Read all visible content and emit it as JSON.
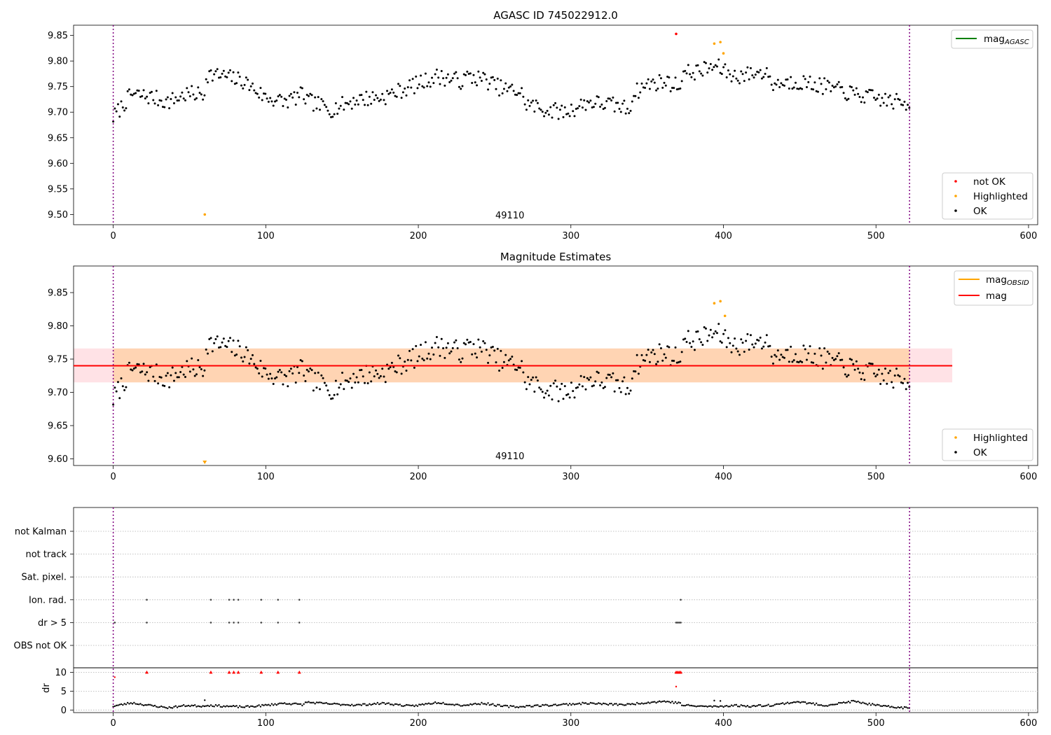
{
  "chart_data": [
    {
      "type": "scatter",
      "title": "AGASC ID 745022912.0",
      "xlim": [
        -26,
        606
      ],
      "ylim": [
        9.48,
        9.87
      ],
      "xticks": [
        0,
        100,
        200,
        300,
        400,
        500,
        600
      ],
      "yticks": [
        9.5,
        9.55,
        9.6,
        9.65,
        9.7,
        9.75,
        9.8,
        9.85
      ],
      "grid": false,
      "obsid_label": "49110",
      "obsid_label_x": 260,
      "vlines_x": [
        0,
        522
      ],
      "legend_lines": [
        {
          "name": "mag",
          "sub": "AGASC",
          "color": "#008000"
        }
      ],
      "legend_lines_position": "top-right",
      "legend_points": [
        {
          "name": "not OK",
          "color": "#ff0000"
        },
        {
          "name": "Highlighted",
          "color": "#ffa500"
        },
        {
          "name": "OK",
          "color": "#000000"
        }
      ],
      "legend_points_position": "bottom-right",
      "series_ok_segments": [
        {
          "x": [
            0,
            60
          ],
          "start": 9.69,
          "levels": [
            9.735,
            9.73,
            9.72,
            9.735,
            9.735
          ]
        },
        {
          "x": [
            60,
            125
          ],
          "start": 9.775,
          "levels": [
            9.77,
            9.76,
            9.73,
            9.72,
            9.735
          ]
        },
        {
          "x": [
            125,
            230
          ],
          "start": 9.725,
          "levels": [
            9.705,
            9.725,
            9.73,
            9.75,
            9.77,
            9.76
          ]
        },
        {
          "x": [
            230,
            268
          ],
          "start": 9.77,
          "levels": [
            9.765,
            9.745,
            9.74
          ]
        },
        {
          "x": [
            268,
            340
          ],
          "start": 9.72,
          "levels": [
            9.705,
            9.7,
            9.72,
            9.715,
            9.705
          ]
        },
        {
          "x": [
            340,
            372
          ],
          "start": 9.735,
          "levels": [
            9.755,
            9.76,
            9.75
          ]
        },
        {
          "x": [
            372,
            430
          ],
          "start": 9.775,
          "levels": [
            9.78,
            9.79,
            9.77,
            9.775,
            9.78
          ]
        },
        {
          "x": [
            430,
            522
          ],
          "start": 9.755,
          "levels": [
            9.76,
            9.75,
            9.735,
            9.725,
            9.715
          ]
        }
      ],
      "ok_noise": 0.016,
      "not_ok": [
        {
          "x": 369,
          "y": 9.853
        }
      ],
      "highlighted": [
        {
          "x": 60,
          "y": 9.5
        },
        {
          "x": 394,
          "y": 9.834
        },
        {
          "x": 398,
          "y": 9.837
        },
        {
          "x": 400,
          "y": 9.815
        }
      ]
    },
    {
      "type": "scatter",
      "title": "Magnitude Estimates",
      "xlim": [
        -26,
        606
      ],
      "ylim": [
        9.59,
        9.89
      ],
      "xticks": [
        0,
        100,
        200,
        300,
        400,
        500,
        600
      ],
      "yticks": [
        9.6,
        9.65,
        9.7,
        9.75,
        9.8,
        9.85
      ],
      "grid": false,
      "obsid_label": "49110",
      "obsid_label_x": 260,
      "vlines_x": [
        0,
        522
      ],
      "mag_line": {
        "y": 9.74,
        "color": "#ff0000"
      },
      "mag_band": {
        "low": 9.715,
        "high": 9.766,
        "x0": -26,
        "x1": 550,
        "color": "#ffb6c1"
      },
      "obsid_band": {
        "low": 9.715,
        "high": 9.766,
        "x0": 0,
        "x1": 522,
        "color": "#ffa500"
      },
      "legend_lines": [
        {
          "name": "mag",
          "sub": "OBSID",
          "color": "#ffa500"
        },
        {
          "name": "mag",
          "sub": "",
          "color": "#ff0000"
        }
      ],
      "legend_lines_position": "top-right",
      "legend_points": [
        {
          "name": "Highlighted",
          "color": "#ffa500"
        },
        {
          "name": "OK",
          "color": "#000000"
        }
      ],
      "legend_points_position": "bottom-right",
      "highlighted": [
        {
          "x": 394,
          "y": 9.834
        },
        {
          "x": 398,
          "y": 9.837
        },
        {
          "x": 401,
          "y": 9.815
        }
      ],
      "highlighted_below_range": [
        {
          "x": 60
        }
      ]
    },
    {
      "type": "scatter",
      "title": "",
      "xlim": [
        -26,
        606
      ],
      "xticks": [
        0,
        100,
        200,
        300,
        400,
        500,
        600
      ],
      "vlines_x": [
        0,
        522
      ],
      "flag_rows": [
        "not Kalman",
        "not track",
        "Sat. pixel.",
        "Ion. rad.",
        "dr > 5",
        "OBS not OK"
      ],
      "flags": {
        "Ion. rad.": [
          22,
          64,
          76,
          79,
          82,
          97,
          108,
          122,
          372
        ],
        "dr > 5": [
          1,
          22,
          64,
          76,
          79,
          82,
          97,
          108,
          122,
          369,
          370,
          371,
          372
        ]
      },
      "dr_panel": {
        "ylabel": "dr",
        "ylim": [
          -0.5,
          11
        ],
        "yticks": [
          0,
          5,
          10
        ],
        "clip_value": 10,
        "baseline": [
          {
            "x": [
              0,
              60
            ],
            "start": 1.0,
            "levels": [
              1.9,
              1.2,
              0.6,
              1.2,
              1.0
            ]
          },
          {
            "x": [
              60,
              125
            ],
            "start": 1.3,
            "levels": [
              1.0,
              0.8,
              1.2,
              1.8,
              1.4
            ]
          },
          {
            "x": [
              125,
              230
            ],
            "start": 2.1,
            "levels": [
              1.6,
              1.3,
              1.8,
              1.0,
              2.0,
              1.2
            ]
          },
          {
            "x": [
              230,
              268
            ],
            "start": 1.3,
            "levels": [
              1.8,
              1.0,
              0.8
            ]
          },
          {
            "x": [
              268,
              340
            ],
            "start": 1.0,
            "levels": [
              1.2,
              1.5,
              1.8,
              1.5,
              1.4
            ]
          },
          {
            "x": [
              340,
              372
            ],
            "start": 1.6,
            "levels": [
              2.0,
              2.3,
              1.8
            ]
          },
          {
            "x": [
              372,
              430
            ],
            "start": 1.3,
            "levels": [
              1.0,
              0.9,
              1.2,
              1.0,
              1.3
            ]
          },
          {
            "x": [
              430,
              522
            ],
            "start": 1.2,
            "levels": [
              2.2,
              1.2,
              2.3,
              1.0,
              0.5
            ]
          }
        ],
        "clipped_x": [
          22,
          64,
          76,
          79,
          82,
          97,
          108,
          122,
          369,
          370,
          371,
          372
        ],
        "extra_points": [
          {
            "x": 1,
            "y": 8.7
          },
          {
            "x": 60,
            "y": 2.6
          },
          {
            "x": 369,
            "y": 6.2
          },
          {
            "x": 394,
            "y": 2.5
          },
          {
            "x": 398,
            "y": 2.4
          }
        ]
      }
    }
  ]
}
